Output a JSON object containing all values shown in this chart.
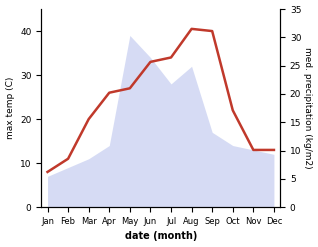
{
  "months": [
    "Jan",
    "Feb",
    "Mar",
    "Apr",
    "May",
    "Jun",
    "Jul",
    "Aug",
    "Sep",
    "Oct",
    "Nov",
    "Dec"
  ],
  "temperature": [
    8,
    11,
    20,
    26,
    27,
    33,
    34,
    40.5,
    40,
    22,
    13,
    13
  ],
  "precipitation_left_scale": [
    7,
    9,
    11,
    14,
    39,
    34,
    28,
    32,
    17,
    14,
    13,
    12
  ],
  "temp_color": "#c0392b",
  "precip_fill_color": "#c5cdf0",
  "ylabel_left": "max temp (C)",
  "ylabel_right": "med. precipitation (kg/m2)",
  "xlabel": "date (month)",
  "ylim_left": [
    0,
    45
  ],
  "ylim_right": [
    0,
    35
  ],
  "left_yticks": [
    0,
    10,
    20,
    30,
    40
  ],
  "right_yticks": [
    0,
    5,
    10,
    15,
    20,
    25,
    30,
    35
  ],
  "background_color": "#ffffff",
  "temp_linewidth": 1.8,
  "fig_width": 3.18,
  "fig_height": 2.47,
  "dpi": 100
}
